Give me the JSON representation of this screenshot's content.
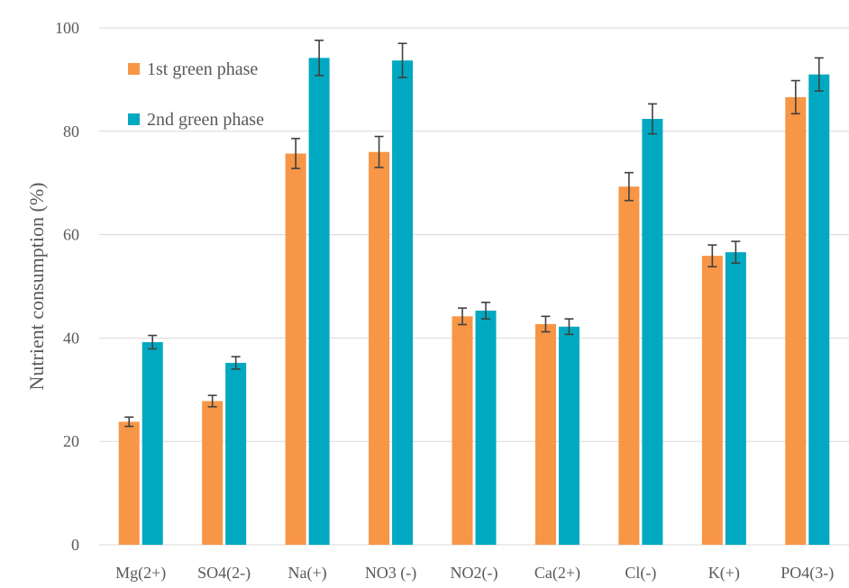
{
  "chart_data": {
    "type": "bar",
    "ylabel": "Nutrient consumption (%)",
    "xlabel": "",
    "ylim": [
      0,
      100
    ],
    "yticks": [
      0,
      20,
      40,
      60,
      80,
      100
    ],
    "grid": true,
    "legend_position": "top-left",
    "categories": [
      "Mg(2+)",
      "SO4(2-)",
      "Na(+)",
      "NO3 (-)",
      "NO2(-)",
      "Ca(2+)",
      "Cl(-)",
      "K(+)",
      "PO4(3-)"
    ],
    "series": [
      {
        "name": "1st green phase",
        "color": "#F79646",
        "values": [
          23.8,
          27.8,
          75.7,
          76.0,
          44.2,
          42.7,
          69.3,
          55.9,
          86.6
        ],
        "errors": [
          0.9,
          1.1,
          2.9,
          3.0,
          1.6,
          1.5,
          2.7,
          2.1,
          3.2
        ]
      },
      {
        "name": "2nd green phase",
        "color": "#00A9C1",
        "values": [
          39.2,
          35.2,
          94.2,
          93.7,
          45.3,
          42.2,
          82.4,
          56.6,
          91.0
        ],
        "errors": [
          1.3,
          1.2,
          3.4,
          3.3,
          1.6,
          1.5,
          2.9,
          2.1,
          3.2
        ]
      }
    ]
  }
}
